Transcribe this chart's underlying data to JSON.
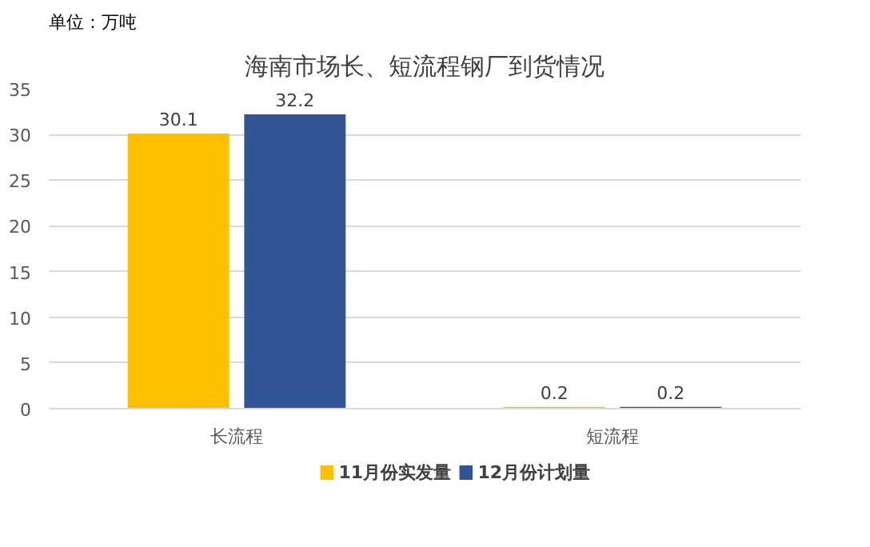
{
  "chart_data": {
    "type": "bar",
    "title": "海南市场长、短流程钢厂到货情况",
    "ylabel": "单位：万吨",
    "categories": [
      "长流程",
      "短流程"
    ],
    "series": [
      {
        "name": "11月份实发量",
        "color": "#ffc000",
        "values": [
          30.1,
          0.2
        ]
      },
      {
        "name": "12月份计划量",
        "color": "#2f5597",
        "values": [
          32.2,
          0.2
        ]
      }
    ],
    "ylim": [
      0,
      35
    ],
    "yticks": [
      0,
      5,
      10,
      15,
      20,
      25,
      30,
      35
    ],
    "grid": "y",
    "legend": "bottom",
    "data_labels": true
  }
}
